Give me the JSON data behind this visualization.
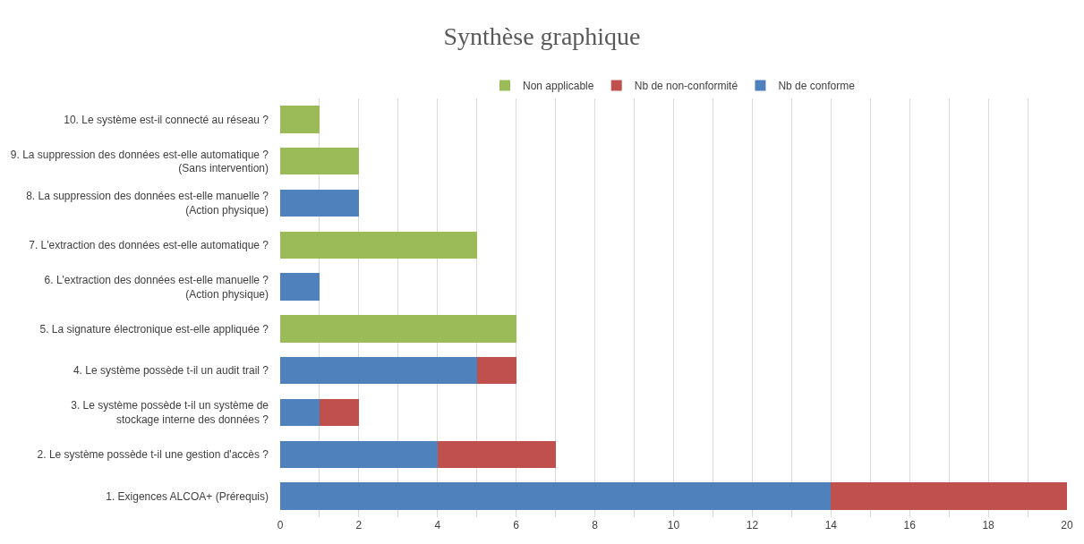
{
  "chart_data": {
    "type": "bar",
    "orientation": "horizontal",
    "stacked": true,
    "title": "Synthèse graphique",
    "categories": [
      "10. Le système est-il connecté au réseau ?",
      "9. La suppression des données est-elle automatique ?\n(Sans intervention)",
      "8. La suppression des données est-elle manuelle ?\n(Action physique)",
      "7. L'extraction des données est-elle automatique ?",
      "6. L'extraction des données est-elle manuelle ?\n(Action physique)",
      "5. La signature électronique est-elle appliquée ?",
      "4. Le système possède t-il un audit trail ?",
      "3. Le système possède t-il un système de\nstockage interne des données ?",
      "2. Le système possède t-il une gestion d'accès ?",
      "1. Exigences ALCOA+ (Prérequis)"
    ],
    "series": [
      {
        "name": "Nb de conforme",
        "color": "#4f81bd",
        "values": [
          null,
          null,
          2,
          null,
          1,
          null,
          5,
          1,
          4,
          14
        ]
      },
      {
        "name": "Nb de non-conformité",
        "color": "#c0504d",
        "values": [
          null,
          null,
          null,
          null,
          null,
          null,
          1,
          1,
          3,
          6
        ]
      },
      {
        "name": "Non applicable",
        "color": "#9bbb59",
        "values": [
          1,
          2,
          null,
          5,
          null,
          6,
          null,
          null,
          null,
          null
        ]
      }
    ],
    "xlim": [
      0,
      20
    ],
    "xticks": [
      0,
      {
        "value": 1,
        "label": null
      },
      2,
      {
        "value": 3,
        "label": null
      },
      4,
      {
        "value": 5,
        "label": null
      },
      6,
      {
        "value": 7,
        "label": null
      },
      8,
      {
        "value": 9,
        "label": null
      },
      10,
      {
        "value": 11,
        "label": null
      },
      12,
      {
        "value": 13,
        "label": null
      },
      14,
      {
        "value": 15,
        "label": null
      },
      16,
      {
        "value": 17,
        "label": null
      },
      18,
      {
        "value": 19,
        "label": null
      },
      20
    ],
    "grid": "x",
    "legend": "top"
  }
}
